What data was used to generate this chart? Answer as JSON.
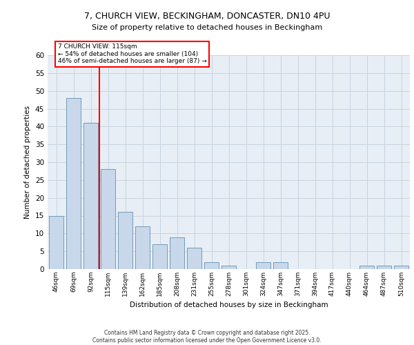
{
  "title1": "7, CHURCH VIEW, BECKINGHAM, DONCASTER, DN10 4PU",
  "title2": "Size of property relative to detached houses in Beckingham",
  "xlabel": "Distribution of detached houses by size in Beckingham",
  "ylabel": "Number of detached properties",
  "categories": [
    "46sqm",
    "69sqm",
    "92sqm",
    "115sqm",
    "139sqm",
    "162sqm",
    "185sqm",
    "208sqm",
    "231sqm",
    "255sqm",
    "278sqm",
    "301sqm",
    "324sqm",
    "347sqm",
    "371sqm",
    "394sqm",
    "417sqm",
    "440sqm",
    "464sqm",
    "487sqm",
    "510sqm"
  ],
  "values": [
    15,
    48,
    41,
    28,
    16,
    12,
    7,
    9,
    6,
    2,
    1,
    0,
    2,
    2,
    0,
    0,
    0,
    0,
    1,
    1,
    1
  ],
  "bar_color": "#c8d8ea",
  "bar_edge_color": "#6090b0",
  "grid_color": "#c8d4e0",
  "background_color": "#e8eef5",
  "vline_x_index": 3,
  "vline_color": "red",
  "annotation_text": "7 CHURCH VIEW: 115sqm\n← 54% of detached houses are smaller (104)\n46% of semi-detached houses are larger (87) →",
  "annotation_box_facecolor": "white",
  "annotation_box_edgecolor": "red",
  "ylim": [
    0,
    60
  ],
  "yticks": [
    0,
    5,
    10,
    15,
    20,
    25,
    30,
    35,
    40,
    45,
    50,
    55,
    60
  ],
  "footer": "Contains HM Land Registry data © Crown copyright and database right 2025.\nContains public sector information licensed under the Open Government Licence v3.0."
}
